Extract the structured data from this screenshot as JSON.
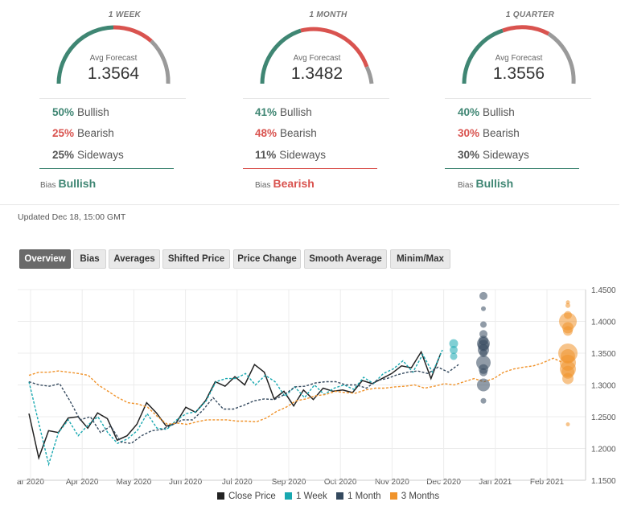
{
  "forecasts": [
    {
      "period": "1 WEEK",
      "gauge_label": "Avg Forecast",
      "avg": "1.3564",
      "rows": [
        {
          "pct": "50%",
          "label": "Bullish",
          "color": "#3f8673"
        },
        {
          "pct": "25%",
          "label": "Bearish",
          "color": "#d9534f"
        },
        {
          "pct": "25%",
          "label": "Sideways",
          "color": "#555555"
        }
      ],
      "bias_label": "Bias",
      "bias": "Bullish",
      "bias_color": "#3f8673"
    },
    {
      "period": "1 MONTH",
      "gauge_label": "Avg Forecast",
      "avg": "1.3482",
      "rows": [
        {
          "pct": "41%",
          "label": "Bullish",
          "color": "#3f8673"
        },
        {
          "pct": "48%",
          "label": "Bearish",
          "color": "#d9534f"
        },
        {
          "pct": "11%",
          "label": "Sideways",
          "color": "#555555"
        }
      ],
      "bias_label": "Bias",
      "bias": "Bearish",
      "bias_color": "#d9534f"
    },
    {
      "period": "1 QUARTER",
      "gauge_label": "Avg Forecast",
      "avg": "1.3556",
      "rows": [
        {
          "pct": "40%",
          "label": "Bullish",
          "color": "#3f8673"
        },
        {
          "pct": "30%",
          "label": "Bearish",
          "color": "#d9534f"
        },
        {
          "pct": "30%",
          "label": "Sideways",
          "color": "#555555"
        }
      ],
      "bias_label": "Bias",
      "bias": "Bullish",
      "bias_color": "#3f8673"
    }
  ],
  "updated": "Updated Dec 18, 15:00 GMT",
  "tabs": [
    "Overview",
    "Bias",
    "Averages",
    "Shifted Price",
    "Price Change",
    "Smooth Average",
    "Minim/Max"
  ],
  "active_tab": "Overview",
  "chart_data": {
    "type": "line",
    "ylim": [
      1.15,
      1.45
    ],
    "yticks": [
      "1.4500",
      "1.4000",
      "1.3500",
      "1.3000",
      "1.2500",
      "1.2000",
      "1.1500"
    ],
    "xlabels": [
      "ar 2020",
      "Apr 2020",
      "May 2020",
      "Jun 2020",
      "Jul 2020",
      "Sep 2020",
      "Oct 2020",
      "Nov 2020",
      "Dec 2020",
      "Jan 2021",
      "Feb 2021"
    ],
    "series": [
      {
        "name": "Close Price",
        "color": "#222222",
        "dash": false,
        "values": [
          1.255,
          1.185,
          1.228,
          1.225,
          1.248,
          1.25,
          1.232,
          1.256,
          1.247,
          1.213,
          1.22,
          1.238,
          1.272,
          1.256,
          1.235,
          1.24,
          1.265,
          1.257,
          1.275,
          1.305,
          1.298,
          1.313,
          1.3,
          1.332,
          1.32,
          1.278,
          1.29,
          1.267,
          1.292,
          1.277,
          1.295,
          1.29,
          1.292,
          1.288,
          1.307,
          1.302,
          1.31,
          1.318,
          1.33,
          1.327,
          1.352,
          1.31,
          1.35
        ]
      },
      {
        "name": "1 Week",
        "color": "#18a8b0",
        "dash": true,
        "values": [
          1.305,
          1.24,
          1.175,
          1.225,
          1.245,
          1.22,
          1.237,
          1.25,
          1.225,
          1.208,
          1.215,
          1.228,
          1.255,
          1.232,
          1.23,
          1.245,
          1.255,
          1.258,
          1.275,
          1.305,
          1.31,
          1.31,
          1.318,
          1.3,
          1.315,
          1.305,
          1.282,
          1.297,
          1.28,
          1.3,
          1.285,
          1.295,
          1.3,
          1.293,
          1.312,
          1.302,
          1.318,
          1.325,
          1.338,
          1.32,
          1.348,
          1.32,
          1.355
        ]
      },
      {
        "name": "1 Month",
        "color": "#34495e",
        "dash": true,
        "values": [
          1.305,
          1.3,
          1.298,
          1.302,
          1.275,
          1.245,
          1.25,
          1.225,
          1.235,
          1.21,
          1.208,
          1.22,
          1.228,
          1.23,
          1.237,
          1.245,
          1.245,
          1.26,
          1.28,
          1.262,
          1.262,
          1.268,
          1.275,
          1.278,
          1.277,
          1.285,
          1.297,
          1.298,
          1.303,
          1.305,
          1.305,
          1.3,
          1.3,
          1.295,
          1.307,
          1.31,
          1.316,
          1.32,
          1.322,
          1.318,
          1.328,
          1.32,
          1.332
        ]
      },
      {
        "name": "3 Months",
        "color": "#f0932b",
        "dash": true,
        "values": [
          1.315,
          1.32,
          1.32,
          1.322,
          1.32,
          1.318,
          1.315,
          1.3,
          1.29,
          1.28,
          1.272,
          1.27,
          1.265,
          1.25,
          1.238,
          1.24,
          1.238,
          1.242,
          1.245,
          1.245,
          1.245,
          1.243,
          1.243,
          1.242,
          1.248,
          1.258,
          1.265,
          1.275,
          1.278,
          1.283,
          1.285,
          1.29,
          1.288,
          1.287,
          1.292,
          1.295,
          1.295,
          1.297,
          1.298,
          1.3,
          1.295,
          1.298,
          1.302,
          1.3,
          1.305,
          1.31,
          1.305,
          1.31,
          1.32,
          1.325,
          1.328,
          1.33,
          1.335,
          1.342,
          1.335
        ]
      }
    ],
    "forecast_points": [
      {
        "series": "1 Week",
        "color": "#18a8b0",
        "values": [
          1.365,
          1.355,
          1.345
        ]
      },
      {
        "series": "1 Month",
        "color": "#34495e",
        "values": [
          1.44,
          1.42,
          1.395,
          1.38,
          1.37,
          1.365,
          1.362,
          1.355,
          1.35,
          1.335,
          1.325,
          1.32,
          1.3,
          1.275
        ]
      },
      {
        "series": "3 Months",
        "color": "#f0932b",
        "values": [
          1.43,
          1.425,
          1.41,
          1.4,
          1.39,
          1.385,
          1.35,
          1.345,
          1.335,
          1.325,
          1.32,
          1.31,
          1.238
        ]
      }
    ]
  }
}
